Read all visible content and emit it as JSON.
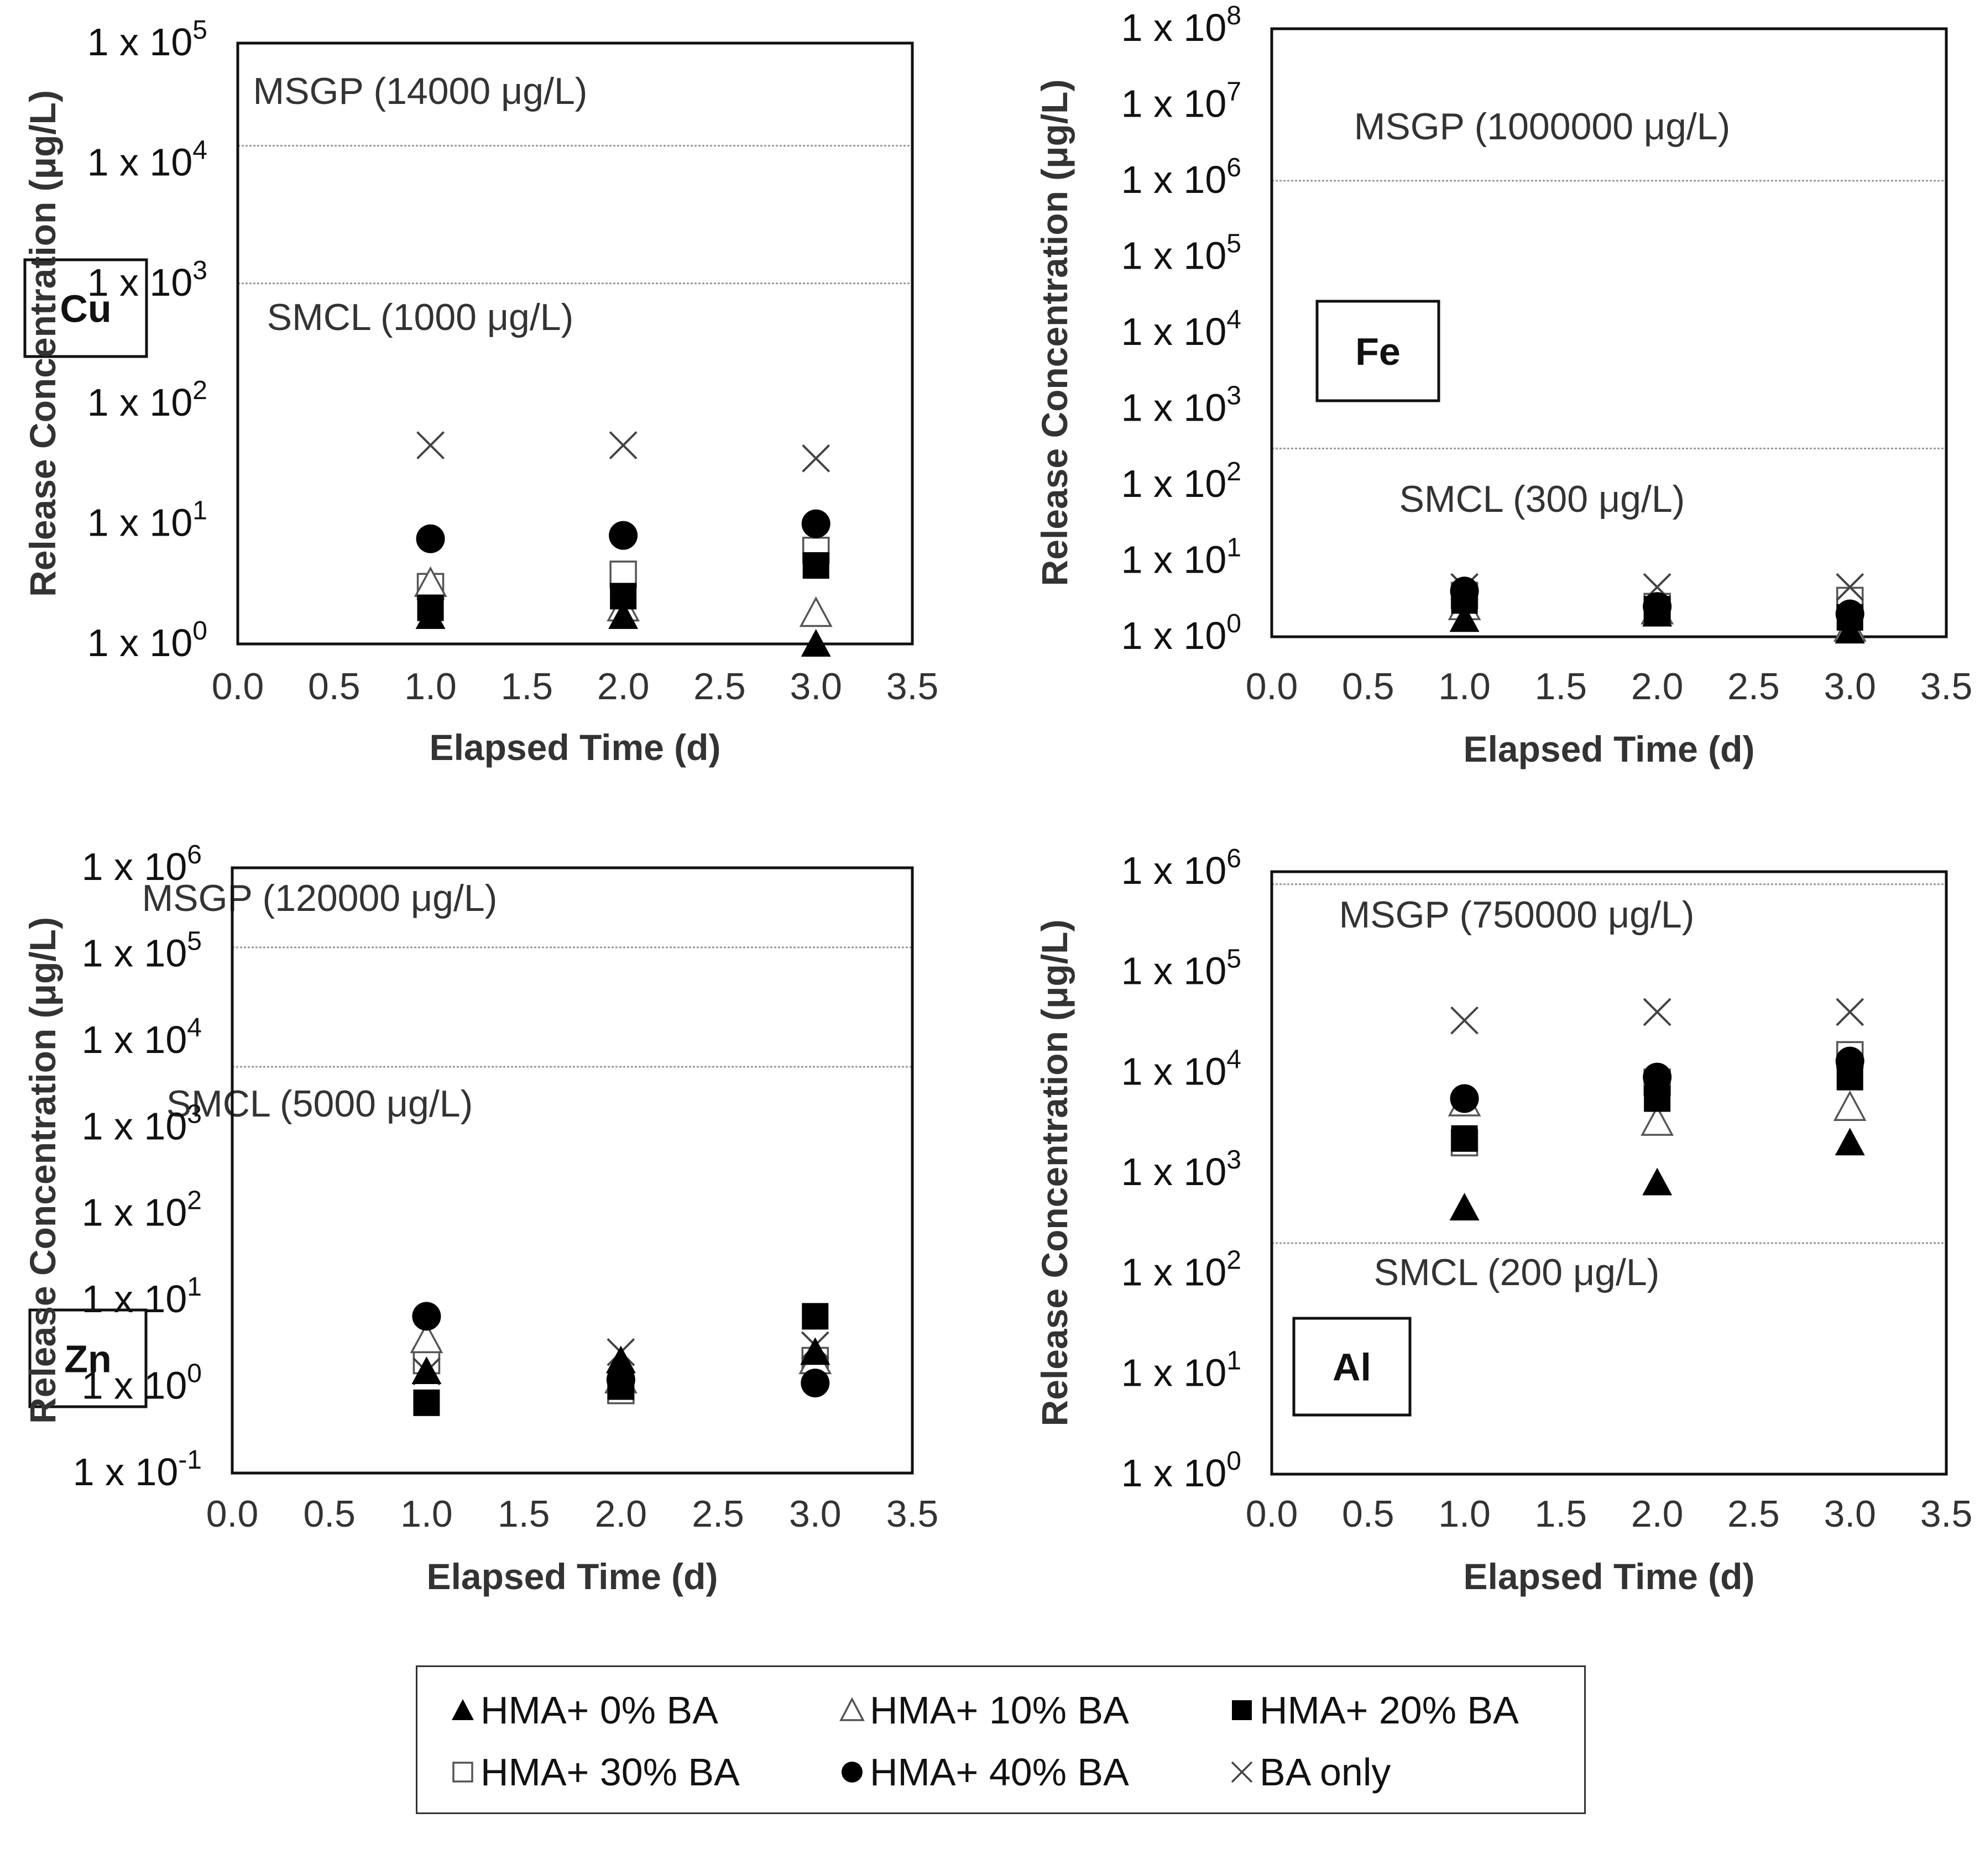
{
  "chart_data": [
    {
      "type": "scatter",
      "element": "Cu",
      "xlabel": "Elapsed Time (d)",
      "ylabel": "Release Concentration (μg/L)",
      "xlim": [
        0.0,
        3.5
      ],
      "x_ticks": [
        "0.0",
        "0.5",
        "1.0",
        "1.5",
        "2.0",
        "2.5",
        "3.0",
        "3.5"
      ],
      "ylim_log10": [
        0,
        5
      ],
      "y_ticks": [
        {
          "base": "1 x 10",
          "exp": "0"
        },
        {
          "base": "1 x 10",
          "exp": "1"
        },
        {
          "base": "1 x 10",
          "exp": "2"
        },
        {
          "base": "1 x 10",
          "exp": "3"
        },
        {
          "base": "1 x 10",
          "exp": "4"
        },
        {
          "base": "1 x 10",
          "exp": "5"
        }
      ],
      "reference_lines": [
        {
          "label": "MSGP (14000 μg/L)",
          "value": 14000
        },
        {
          "label": "SMCL (1000 μg/L)",
          "value": 1000
        }
      ],
      "series": [
        {
          "name": "HMA+ 0% BA",
          "x": [
            1.0,
            2.0,
            3.0
          ],
          "values": [
            1.7,
            1.7,
            1.0
          ]
        },
        {
          "name": "HMA+ 10% BA",
          "x": [
            1.0,
            2.0,
            3.0
          ],
          "values": [
            3.2,
            2.0,
            1.8
          ]
        },
        {
          "name": "HMA+ 20% BA",
          "x": [
            1.0,
            2.0,
            3.0
          ],
          "values": [
            2.0,
            2.5,
            4.5
          ]
        },
        {
          "name": "HMA+ 30% BA",
          "x": [
            1.0,
            2.0,
            3.0
          ],
          "values": [
            3.0,
            3.8,
            6.0
          ]
        },
        {
          "name": "HMA+ 40% BA",
          "x": [
            1.0,
            2.0,
            3.0
          ],
          "values": [
            7.5,
            8.0,
            10.0
          ]
        },
        {
          "name": "BA only",
          "x": [
            1.0,
            2.0,
            3.0
          ],
          "values": [
            45,
            45,
            35
          ]
        }
      ]
    },
    {
      "type": "scatter",
      "element": "Fe",
      "xlabel": "Elapsed Time (d)",
      "ylabel": "Release Concentration (μg/L)",
      "xlim": [
        0.0,
        3.5
      ],
      "x_ticks": [
        "0.0",
        "0.5",
        "1.0",
        "1.5",
        "2.0",
        "2.5",
        "3.0",
        "3.5"
      ],
      "ylim_log10": [
        0,
        8
      ],
      "y_ticks": [
        {
          "base": "1 x 10",
          "exp": "0"
        },
        {
          "base": "1 x 10",
          "exp": "1"
        },
        {
          "base": "1 x 10",
          "exp": "2"
        },
        {
          "base": "1 x 10",
          "exp": "3"
        },
        {
          "base": "1 x 10",
          "exp": "4"
        },
        {
          "base": "1 x 10",
          "exp": "5"
        },
        {
          "base": "1 x 10",
          "exp": "6"
        },
        {
          "base": "1 x 10",
          "exp": "7"
        },
        {
          "base": "1 x 10",
          "exp": "8"
        }
      ],
      "reference_lines": [
        {
          "label": "MSGP (1000000 μg/L)",
          "value": 1000000
        },
        {
          "label": "SMCL (300 μg/L)",
          "value": 300
        }
      ],
      "series": [
        {
          "name": "HMA+ 0% BA",
          "x": [
            1.0,
            2.0,
            3.0
          ],
          "values": [
            1.7,
            2.0,
            1.2
          ]
        },
        {
          "name": "HMA+ 10% BA",
          "x": [
            1.0,
            2.0,
            3.0
          ],
          "values": [
            2.5,
            2.2,
            1.3
          ]
        },
        {
          "name": "HMA+ 20% BA",
          "x": [
            1.0,
            2.0,
            3.0
          ],
          "values": [
            3.0,
            2.3,
            1.8
          ]
        },
        {
          "name": "HMA+ 30% BA",
          "x": [
            1.0,
            2.0,
            3.0
          ],
          "values": [
            3.5,
            2.5,
            3.0
          ]
        },
        {
          "name": "HMA+ 40% BA",
          "x": [
            1.0,
            2.0,
            3.0
          ],
          "values": [
            4.0,
            2.5,
            2.0
          ]
        },
        {
          "name": "BA only",
          "x": [
            1.0,
            2.0,
            3.0
          ],
          "values": [
            4.5,
            4.5,
            4.5
          ]
        }
      ]
    },
    {
      "type": "scatter",
      "element": "Zn",
      "xlabel": "Elapsed Time (d)",
      "ylabel": "Release Concentration (μg/L)",
      "xlim": [
        0.0,
        3.5
      ],
      "x_ticks": [
        "0.0",
        "0.5",
        "1.0",
        "1.5",
        "2.0",
        "2.5",
        "3.0",
        "3.5"
      ],
      "ylim_log10": [
        -1,
        6
      ],
      "y_ticks": [
        {
          "base": "1 x 10",
          "exp": "-1"
        },
        {
          "base": "1 x 10",
          "exp": "0"
        },
        {
          "base": "1 x 10",
          "exp": "1"
        },
        {
          "base": "1 x 10",
          "exp": "2"
        },
        {
          "base": "1 x 10",
          "exp": "3"
        },
        {
          "base": "1 x 10",
          "exp": "4"
        },
        {
          "base": "1 x 10",
          "exp": "5"
        },
        {
          "base": "1 x 10",
          "exp": "6"
        }
      ],
      "reference_lines": [
        {
          "label": "MSGP (120000 μg/L)",
          "value": 120000
        },
        {
          "label": "SMCL (5000 μg/L)",
          "value": 5000
        }
      ],
      "series": [
        {
          "name": "HMA+ 0% BA",
          "x": [
            1.0,
            2.0,
            3.0
          ],
          "values": [
            1.5,
            2.0,
            2.5
          ]
        },
        {
          "name": "HMA+ 10% BA",
          "x": [
            1.0,
            2.0,
            3.0
          ],
          "values": [
            3.5,
            1.2,
            2.0
          ]
        },
        {
          "name": "HMA+ 20% BA",
          "x": [
            1.0,
            2.0,
            3.0
          ],
          "values": [
            0.65,
            1.0,
            6.5
          ]
        },
        {
          "name": "HMA+ 30% BA",
          "x": [
            1.0,
            2.0,
            3.0
          ],
          "values": [
            2.0,
            0.9,
            2.0
          ]
        },
        {
          "name": "HMA+ 40% BA",
          "x": [
            1.0,
            2.0,
            3.0
          ],
          "values": [
            6.5,
            1.2,
            1.1
          ]
        },
        {
          "name": "BA only",
          "x": [
            1.0,
            2.0,
            3.0
          ],
          "values": [
            1.5,
            2.5,
            3.0
          ]
        }
      ]
    },
    {
      "type": "scatter",
      "element": "Al",
      "xlabel": "Elapsed Time (d)",
      "ylabel": "Release Concentration (μg/L)",
      "xlim": [
        0.0,
        3.5
      ],
      "x_ticks": [
        "0.0",
        "0.5",
        "1.0",
        "1.5",
        "2.0",
        "2.5",
        "3.0",
        "3.5"
      ],
      "ylim_log10": [
        0,
        6
      ],
      "y_ticks": [
        {
          "base": "1 x 10",
          "exp": "0"
        },
        {
          "base": "1 x 10",
          "exp": "1"
        },
        {
          "base": "1 x 10",
          "exp": "2"
        },
        {
          "base": "1 x 10",
          "exp": "3"
        },
        {
          "base": "1 x 10",
          "exp": "4"
        },
        {
          "base": "1 x 10",
          "exp": "5"
        },
        {
          "base": "1 x 10",
          "exp": "6"
        }
      ],
      "reference_lines": [
        {
          "label": "MSGP (750000 μg/L)",
          "value": 750000
        },
        {
          "label": "SMCL (200 μg/L)",
          "value": 200
        }
      ],
      "series": [
        {
          "name": "HMA+ 0% BA",
          "x": [
            1.0,
            2.0,
            3.0
          ],
          "values": [
            450,
            800,
            2000
          ]
        },
        {
          "name": "HMA+ 10% BA",
          "x": [
            1.0,
            2.0,
            3.0
          ],
          "values": [
            5000,
            3200,
            4500
          ]
        },
        {
          "name": "HMA+ 20% BA",
          "x": [
            1.0,
            2.0,
            3.0
          ],
          "values": [
            2200,
            5500,
            9000
          ]
        },
        {
          "name": "HMA+ 30% BA",
          "x": [
            1.0,
            2.0,
            3.0
          ],
          "values": [
            2000,
            8000,
            15000
          ]
        },
        {
          "name": "HMA+ 40% BA",
          "x": [
            1.0,
            2.0,
            3.0
          ],
          "values": [
            5500,
            9000,
            13000
          ]
        },
        {
          "name": "BA only",
          "x": [
            1.0,
            2.0,
            3.0
          ],
          "values": [
            33000,
            40000,
            40000
          ]
        }
      ]
    }
  ],
  "legend": {
    "items": [
      {
        "label": "HMA+ 0% BA",
        "marker": "filled-triangle-icon"
      },
      {
        "label": "HMA+ 10% BA",
        "marker": "open-triangle-icon"
      },
      {
        "label": "HMA+ 20% BA",
        "marker": "filled-square-icon"
      },
      {
        "label": "HMA+ 30% BA",
        "marker": "open-square-icon"
      },
      {
        "label": "HMA+ 40% BA",
        "marker": "filled-circle-icon"
      },
      {
        "label": "BA only",
        "marker": "cross-icon"
      }
    ]
  },
  "colors": {
    "marker": "#000000",
    "open_marker_stroke": "#555555",
    "cross": "#444444",
    "reference_line": "#999999",
    "axis": "#111111",
    "text": "#333333"
  }
}
